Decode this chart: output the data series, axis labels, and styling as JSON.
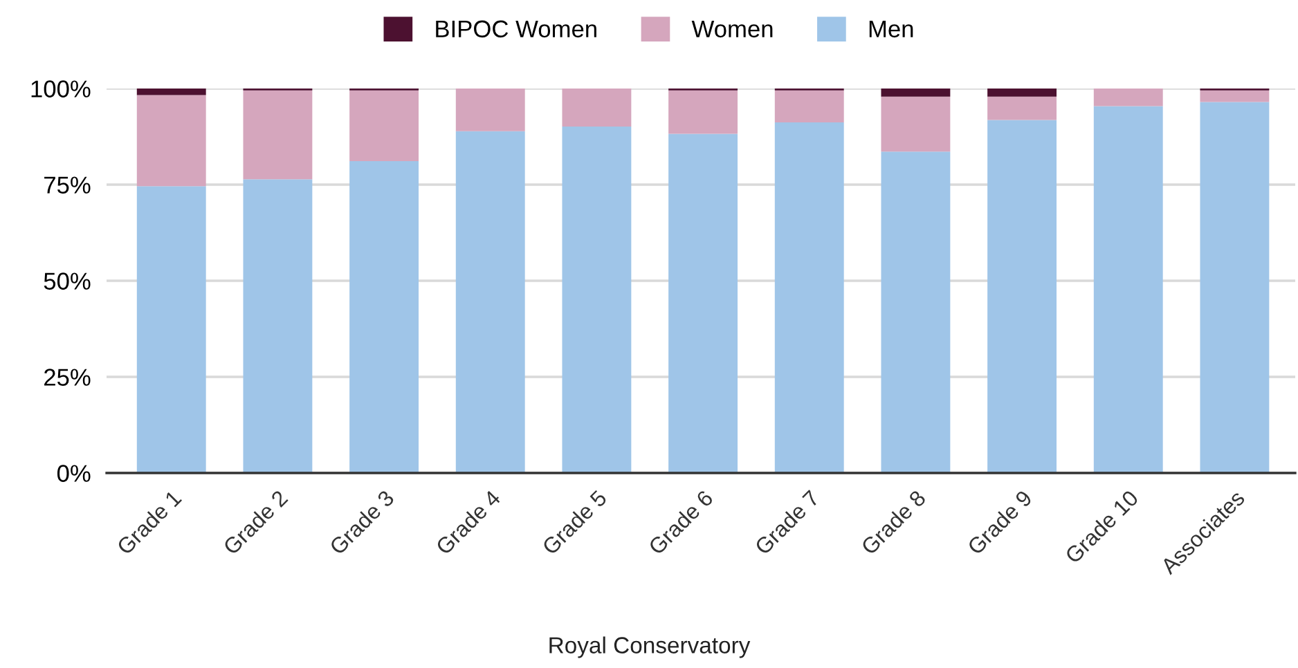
{
  "chart_data": {
    "type": "bar",
    "stacked": true,
    "xlabel": "Royal Conservatory",
    "categories": [
      "Grade 1",
      "Grade 2",
      "Grade 3",
      "Grade 4",
      "Grade 5",
      "Grade 6",
      "Grade 7",
      "Grade 8",
      "Grade 9",
      "Grade 10",
      "Associates"
    ],
    "series": [
      {
        "name": "Men",
        "color": "#9fc5e8",
        "values": [
          74.6,
          76.4,
          81.1,
          88.9,
          90.1,
          88.2,
          91.2,
          83.6,
          91.8,
          95.4,
          96.5
        ]
      },
      {
        "name": "Women",
        "color": "#d5a6bd",
        "values": [
          23.7,
          23.1,
          18.4,
          11.1,
          9.9,
          11.3,
          8.3,
          14.3,
          6.1,
          4.6,
          3.0
        ]
      },
      {
        "name": "BIPOC Women",
        "color": "#4c1130",
        "values": [
          1.7,
          0.5,
          0.5,
          0,
          0,
          0.5,
          0.5,
          2.1,
          2.1,
          0,
          0.5
        ]
      }
    ],
    "ylim": [
      0,
      100
    ],
    "yticks": [
      {
        "value": 0,
        "label": "0%"
      },
      {
        "value": 25,
        "label": "25%"
      },
      {
        "value": 50,
        "label": "50%"
      },
      {
        "value": 75,
        "label": "75%"
      },
      {
        "value": 100,
        "label": "100%"
      }
    ],
    "grid": "y",
    "legend": "top"
  }
}
